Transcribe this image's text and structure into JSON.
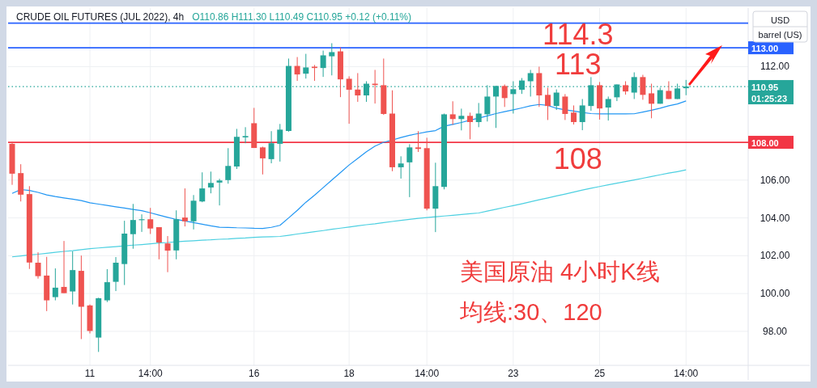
{
  "chart_data": {
    "type": "candlestick",
    "title": "CRUDE OIL FUTURES (JUL 2022), 4h",
    "subtitle": "O110.86 H111.30 L110.49 C110.95 +0.12 (+0.11%)",
    "ylabel": "USD",
    "categories": [
      null,
      null,
      null,
      null,
      null,
      null,
      null,
      null,
      null,
      "11",
      null,
      null,
      null,
      null,
      null,
      null,
      "14:00",
      null,
      null,
      null,
      null,
      null,
      null,
      null,
      null,
      null,
      null,
      null,
      "16",
      null,
      null,
      null,
      null,
      null,
      null,
      null,
      null,
      null,
      null,
      "18",
      null,
      null,
      null,
      null,
      null,
      null,
      null,
      null,
      "14:00",
      null,
      null,
      null,
      null,
      null,
      null,
      null,
      null,
      null,
      "23",
      null,
      null,
      null,
      null,
      null,
      null,
      null,
      null,
      null,
      "25",
      null,
      null,
      null,
      null,
      null,
      null,
      null,
      null,
      null,
      "14:00"
    ],
    "ohlc": [
      [
        107.92,
        108.03,
        105.75,
        106.34
      ],
      [
        106.37,
        106.84,
        104.87,
        105.23
      ],
      [
        105.26,
        105.68,
        101.3,
        101.64
      ],
      [
        101.63,
        102.18,
        100.79,
        100.92
      ],
      [
        100.95,
        101.94,
        99.07,
        99.64
      ],
      [
        99.81,
        101.33,
        99.64,
        100.31
      ],
      [
        100.35,
        102.78,
        100.02,
        100.02
      ],
      [
        100.11,
        102.23,
        99.42,
        101.24
      ],
      [
        101.2,
        102.01,
        97.59,
        99.3
      ],
      [
        99.37,
        99.42,
        97.89,
        98.02
      ],
      [
        97.67,
        99.78,
        96.91,
        99.75
      ],
      [
        99.64,
        101.29,
        99.55,
        100.6
      ],
      [
        100.62,
        101.93,
        100.13,
        101.63
      ],
      [
        101.56,
        103.85,
        100.45,
        103.17
      ],
      [
        103.14,
        104.74,
        102.37,
        103.89
      ],
      [
        103.88,
        104.19,
        103.26,
        103.93
      ],
      [
        103.93,
        104.53,
        103.15,
        103.44
      ],
      [
        103.51,
        103.51,
        101.81,
        102.7
      ],
      [
        102.65,
        103.04,
        101.13,
        102.27
      ],
      [
        102.28,
        104.4,
        101.81,
        103.93
      ],
      [
        104.02,
        105.56,
        103.55,
        103.82
      ],
      [
        103.82,
        105.21,
        103.39,
        104.91
      ],
      [
        104.87,
        106.41,
        104.83,
        105.56
      ],
      [
        105.61,
        106.45,
        105.3,
        105.85
      ],
      [
        105.87,
        106.07,
        104.66,
        105.98
      ],
      [
        106.0,
        107.69,
        105.81,
        106.75
      ],
      [
        106.72,
        108.71,
        106.59,
        108.29
      ],
      [
        108.26,
        108.8,
        107.95,
        108.33
      ],
      [
        109.01,
        109.82,
        107.7,
        107.7
      ],
      [
        107.73,
        107.77,
        106.3,
        107.15
      ],
      [
        107.11,
        108.59,
        106.89,
        107.95
      ],
      [
        107.92,
        108.97,
        106.98,
        108.67
      ],
      [
        108.6,
        112.43,
        108.56,
        112.04
      ],
      [
        112.04,
        112.51,
        111.25,
        111.59
      ],
      [
        111.63,
        112.68,
        111.37,
        111.96
      ],
      [
        112.0,
        112.09,
        111.25,
        111.93
      ],
      [
        111.93,
        112.85,
        111.46,
        112.6
      ],
      [
        112.55,
        113.24,
        111.54,
        112.77
      ],
      [
        112.81,
        113.02,
        110.39,
        111.33
      ],
      [
        111.36,
        111.49,
        108.98,
        110.78
      ],
      [
        110.79,
        111.66,
        110.14,
        110.48
      ],
      [
        110.48,
        111.23,
        110.14,
        111.1
      ],
      [
        111.1,
        111.83,
        110.05,
        111.03
      ],
      [
        111.02,
        112.43,
        109.45,
        109.5
      ],
      [
        109.52,
        110.75,
        106.47,
        106.68
      ],
      [
        106.68,
        107.26,
        106.08,
        106.88
      ],
      [
        106.94,
        107.9,
        105.1,
        107.73
      ],
      [
        107.73,
        108.59,
        107.49,
        107.65
      ],
      [
        107.69,
        108.24,
        104.4,
        104.49
      ],
      [
        104.49,
        106.92,
        103.25,
        105.68
      ],
      [
        105.64,
        109.52,
        105.51,
        109.48
      ],
      [
        109.48,
        110.17,
        108.93,
        109.23
      ],
      [
        109.23,
        109.78,
        108.63,
        109.4
      ],
      [
        109.4,
        109.57,
        108.16,
        109.07
      ],
      [
        109.07,
        110.08,
        108.8,
        109.52
      ],
      [
        109.48,
        111.02,
        109.1,
        110.42
      ],
      [
        110.42,
        110.98,
        108.76,
        110.98
      ],
      [
        110.98,
        111.06,
        109.87,
        110.34
      ],
      [
        110.55,
        111.23,
        109.52,
        110.81
      ],
      [
        110.78,
        111.4,
        110.56,
        111.27
      ],
      [
        111.23,
        111.83,
        110.42,
        111.66
      ],
      [
        111.66,
        112.0,
        109.87,
        110.48
      ],
      [
        110.51,
        110.89,
        109.18,
        109.92
      ],
      [
        109.92,
        110.8,
        109.71,
        110.63
      ],
      [
        110.42,
        110.55,
        109.18,
        109.5
      ],
      [
        109.57,
        109.95,
        108.94,
        109.07
      ],
      [
        109.07,
        110.29,
        108.64,
        109.95
      ],
      [
        109.92,
        111.45,
        109.67,
        111.02
      ],
      [
        111.02,
        111.19,
        109.2,
        109.79
      ],
      [
        109.84,
        110.42,
        109.15,
        110.29
      ],
      [
        110.38,
        111.06,
        110.18,
        111.06
      ],
      [
        111.02,
        111.23,
        110.52,
        110.69
      ],
      [
        110.63,
        111.7,
        110.29,
        111.45
      ],
      [
        111.45,
        111.57,
        110.25,
        110.51
      ],
      [
        110.59,
        111.1,
        109.27,
        110.04
      ],
      [
        110.04,
        110.89,
        110.04,
        110.76
      ],
      [
        110.72,
        111.23,
        110.29,
        110.29
      ],
      [
        110.29,
        111.1,
        110.29,
        110.85
      ],
      [
        110.86,
        111.3,
        110.49,
        110.95
      ]
    ],
    "series": [
      {
        "type": "line",
        "color": "#2196f3",
        "values": [
          105.3,
          105.5,
          105.45,
          105.35,
          105.22,
          105.13,
          105.06,
          104.99,
          104.92,
          104.8,
          104.73,
          104.66,
          104.59,
          104.52,
          104.45,
          104.38,
          104.27,
          104.15,
          104.03,
          103.92,
          103.84,
          103.75,
          103.67,
          103.58,
          103.51,
          103.5,
          103.48,
          103.47,
          103.45,
          103.44,
          103.5,
          103.61,
          104.0,
          104.4,
          104.83,
          105.2,
          105.6,
          106.0,
          106.4,
          106.8,
          107.15,
          107.5,
          107.8,
          108.0,
          108.12,
          108.25,
          108.37,
          108.46,
          108.55,
          108.62,
          108.85,
          108.95,
          109.05,
          109.17,
          109.28,
          109.4,
          109.52,
          109.62,
          109.72,
          109.82,
          109.93,
          110.0,
          109.95,
          109.8,
          109.72,
          109.65,
          109.58,
          109.52,
          109.5,
          109.5,
          109.5,
          109.5,
          109.51,
          109.6,
          109.7,
          109.8,
          109.93,
          110.03,
          110.19
        ]
      },
      {
        "type": "line",
        "color": "#4dd0e1",
        "values": [
          101.94,
          101.99,
          102.04,
          102.08,
          102.13,
          102.18,
          102.23,
          102.27,
          102.32,
          102.37,
          102.41,
          102.45,
          102.48,
          102.52,
          102.56,
          102.59,
          102.63,
          102.67,
          102.7,
          102.74,
          102.77,
          102.79,
          102.82,
          102.84,
          102.87,
          102.89,
          102.92,
          102.94,
          102.97,
          102.99,
          103.0,
          103.02,
          103.08,
          103.15,
          103.21,
          103.27,
          103.33,
          103.4,
          103.46,
          103.52,
          103.58,
          103.64,
          103.69,
          103.75,
          103.81,
          103.87,
          103.92,
          103.98,
          104.02,
          104.06,
          104.1,
          104.14,
          104.18,
          104.22,
          104.26,
          104.36,
          104.46,
          104.56,
          104.65,
          104.75,
          104.85,
          104.96,
          105.06,
          105.16,
          105.26,
          105.37,
          105.47,
          105.57,
          105.66,
          105.75,
          105.84,
          105.92,
          106.01,
          106.1,
          106.19,
          106.28,
          106.37,
          106.45,
          106.54
        ]
      }
    ],
    "ylim": [
      96.2,
      115.1
    ],
    "yticks": [
      {
        "value": 98,
        "label": "98.00"
      },
      {
        "value": 100,
        "label": "100.00"
      },
      {
        "value": 102,
        "label": "102.00"
      },
      {
        "value": 104,
        "label": "104.00"
      },
      {
        "value": 106,
        "label": "106.00"
      },
      {
        "value": 112,
        "label": "112.00"
      }
    ],
    "grid": true,
    "ref_lines": [
      {
        "axis": "y",
        "value": 114.3,
        "color": "#2962ff",
        "line_style": "solid"
      },
      {
        "axis": "y",
        "value": 113,
        "color": "#2962ff",
        "line_style": "solid",
        "label": "113.00"
      },
      {
        "axis": "y",
        "value": 108,
        "color": "#f23645",
        "line_style": "solid",
        "label": "108.00"
      },
      {
        "axis": "y",
        "value": 110.95,
        "color": "#26a69a",
        "line_style": "dotted",
        "label": "110.95"
      }
    ],
    "annotations": [
      {
        "text": "114.3",
        "y": 114.3
      },
      {
        "text": "113",
        "y": 113
      },
      {
        "text": "108",
        "y": 108
      },
      "美国原油 4小时K线",
      "均线:30、120",
      "barrel (US)",
      "01:25:23"
    ]
  }
}
